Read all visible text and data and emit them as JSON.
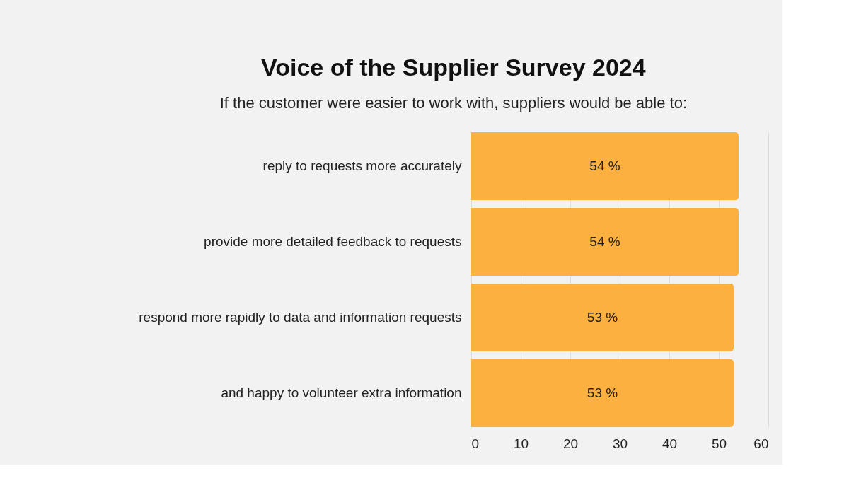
{
  "chart_data": {
    "type": "bar",
    "orientation": "horizontal",
    "title": "Voice of the Supplier Survey 2024",
    "subtitle": "If the customer were easier to work with, suppliers would be able to:",
    "categories": [
      "reply to requests more accurately",
      "provide more detailed feedback to requests",
      "respond more rapidly to data and information requests",
      "and happy to volunteer extra information"
    ],
    "values": [
      54,
      54,
      53,
      53
    ],
    "value_labels": [
      "54 %",
      "54 %",
      "53 %",
      "53 %"
    ],
    "color": "#fbb040",
    "xlim": [
      0,
      60
    ],
    "xticks": [
      0,
      10,
      20,
      30,
      40,
      50,
      60
    ],
    "grid": "x"
  }
}
